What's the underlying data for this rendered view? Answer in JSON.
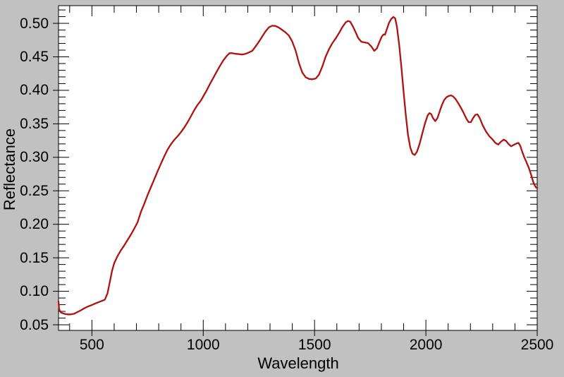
{
  "page": {
    "background": "#c1c1c1"
  },
  "axes": {
    "x": {
      "label": "Wavelength",
      "tick_labels": [
        "500",
        "1000",
        "1500",
        "2000",
        "2500"
      ]
    },
    "y": {
      "label": "Reflectance",
      "tick_labels": [
        "0.05",
        "0.10",
        "0.15",
        "0.20",
        "0.25",
        "0.30",
        "0.35",
        "0.40",
        "0.45",
        "0.50"
      ]
    }
  },
  "chart_data": {
    "type": "line",
    "title": "",
    "xlabel": "Wavelength",
    "ylabel": "Reflectance",
    "xlim": [
      350,
      2500
    ],
    "ylim": [
      0.0416,
      0.5264
    ],
    "x_major_ticks": [
      500,
      1000,
      1500,
      2000,
      2500
    ],
    "x_minor_step": 100,
    "y_major_ticks": [
      0.05,
      0.1,
      0.15,
      0.2,
      0.25,
      0.3,
      0.35,
      0.4,
      0.45,
      0.5
    ],
    "y_minor_step": 0.01,
    "grid": false,
    "legend": false,
    "line_color": "#b01212",
    "plot_bg": "#ffffff",
    "page_bg": "#c1c1c1",
    "axis_color": "#000000",
    "series": [
      {
        "name": "reflectance-spectrum",
        "points": [
          [
            350,
            0.085
          ],
          [
            353,
            0.073
          ],
          [
            360,
            0.0685
          ],
          [
            375,
            0.0665
          ],
          [
            390,
            0.0655
          ],
          [
            405,
            0.0655
          ],
          [
            420,
            0.0665
          ],
          [
            435,
            0.069
          ],
          [
            450,
            0.0715
          ],
          [
            465,
            0.0745
          ],
          [
            480,
            0.077
          ],
          [
            500,
            0.0795
          ],
          [
            520,
            0.0825
          ],
          [
            540,
            0.085
          ],
          [
            558,
            0.0875
          ],
          [
            570,
            0.097
          ],
          [
            580,
            0.113
          ],
          [
            590,
            0.13
          ],
          [
            600,
            0.142
          ],
          [
            615,
            0.1525
          ],
          [
            630,
            0.161
          ],
          [
            645,
            0.1685
          ],
          [
            660,
            0.1765
          ],
          [
            675,
            0.1845
          ],
          [
            690,
            0.1935
          ],
          [
            705,
            0.203
          ],
          [
            720,
            0.2185
          ],
          [
            735,
            0.2305
          ],
          [
            750,
            0.2435
          ],
          [
            765,
            0.2555
          ],
          [
            780,
            0.267
          ],
          [
            795,
            0.279
          ],
          [
            810,
            0.2905
          ],
          [
            825,
            0.3015
          ],
          [
            840,
            0.3115
          ],
          [
            855,
            0.3195
          ],
          [
            870,
            0.326
          ],
          [
            885,
            0.3315
          ],
          [
            900,
            0.3375
          ],
          [
            915,
            0.3445
          ],
          [
            930,
            0.3525
          ],
          [
            945,
            0.3615
          ],
          [
            960,
            0.3705
          ],
          [
            975,
            0.3785
          ],
          [
            990,
            0.385
          ],
          [
            1000,
            0.391
          ],
          [
            1015,
            0.3995
          ],
          [
            1030,
            0.4095
          ],
          [
            1045,
            0.4185
          ],
          [
            1060,
            0.4275
          ],
          [
            1075,
            0.4365
          ],
          [
            1090,
            0.4445
          ],
          [
            1105,
            0.451
          ],
          [
            1118,
            0.4555
          ],
          [
            1130,
            0.4555
          ],
          [
            1145,
            0.4545
          ],
          [
            1160,
            0.454
          ],
          [
            1175,
            0.4535
          ],
          [
            1190,
            0.4545
          ],
          [
            1205,
            0.4565
          ],
          [
            1220,
            0.459
          ],
          [
            1235,
            0.4655
          ],
          [
            1250,
            0.4725
          ],
          [
            1265,
            0.4805
          ],
          [
            1280,
            0.488
          ],
          [
            1295,
            0.494
          ],
          [
            1310,
            0.4965
          ],
          [
            1325,
            0.496
          ],
          [
            1340,
            0.4935
          ],
          [
            1355,
            0.49
          ],
          [
            1370,
            0.4865
          ],
          [
            1385,
            0.4815
          ],
          [
            1400,
            0.4725
          ],
          [
            1415,
            0.4595
          ],
          [
            1430,
            0.4405
          ],
          [
            1445,
            0.4265
          ],
          [
            1460,
            0.4195
          ],
          [
            1475,
            0.417
          ],
          [
            1490,
            0.4165
          ],
          [
            1505,
            0.4175
          ],
          [
            1520,
            0.4235
          ],
          [
            1535,
            0.4355
          ],
          [
            1550,
            0.4505
          ],
          [
            1565,
            0.4615
          ],
          [
            1580,
            0.4705
          ],
          [
            1595,
            0.4775
          ],
          [
            1610,
            0.4855
          ],
          [
            1625,
            0.4945
          ],
          [
            1640,
            0.5015
          ],
          [
            1650,
            0.5035
          ],
          [
            1660,
            0.5025
          ],
          [
            1672,
            0.4955
          ],
          [
            1684,
            0.487
          ],
          [
            1696,
            0.478
          ],
          [
            1710,
            0.4725
          ],
          [
            1725,
            0.4715
          ],
          [
            1740,
            0.4705
          ],
          [
            1755,
            0.4655
          ],
          [
            1768,
            0.459
          ],
          [
            1780,
            0.4625
          ],
          [
            1792,
            0.4725
          ],
          [
            1802,
            0.4805
          ],
          [
            1810,
            0.4835
          ],
          [
            1816,
            0.483
          ],
          [
            1824,
            0.4905
          ],
          [
            1834,
            0.5005
          ],
          [
            1844,
            0.5065
          ],
          [
            1854,
            0.5095
          ],
          [
            1862,
            0.5075
          ],
          [
            1870,
            0.495
          ],
          [
            1880,
            0.468
          ],
          [
            1890,
            0.434
          ],
          [
            1900,
            0.3975
          ],
          [
            1910,
            0.362
          ],
          [
            1920,
            0.333
          ],
          [
            1930,
            0.3145
          ],
          [
            1940,
            0.3055
          ],
          [
            1950,
            0.3035
          ],
          [
            1960,
            0.3085
          ],
          [
            1972,
            0.3205
          ],
          [
            1984,
            0.3355
          ],
          [
            1996,
            0.3505
          ],
          [
            2008,
            0.3625
          ],
          [
            2016,
            0.366
          ],
          [
            2024,
            0.3645
          ],
          [
            2032,
            0.3585
          ],
          [
            2042,
            0.354
          ],
          [
            2052,
            0.3585
          ],
          [
            2062,
            0.3685
          ],
          [
            2072,
            0.378
          ],
          [
            2082,
            0.3855
          ],
          [
            2092,
            0.3895
          ],
          [
            2102,
            0.3915
          ],
          [
            2112,
            0.3925
          ],
          [
            2122,
            0.391
          ],
          [
            2132,
            0.3875
          ],
          [
            2145,
            0.381
          ],
          [
            2158,
            0.3735
          ],
          [
            2170,
            0.366
          ],
          [
            2182,
            0.3575
          ],
          [
            2192,
            0.3525
          ],
          [
            2202,
            0.3525
          ],
          [
            2212,
            0.3585
          ],
          [
            2222,
            0.3635
          ],
          [
            2232,
            0.364
          ],
          [
            2242,
            0.3585
          ],
          [
            2255,
            0.348
          ],
          [
            2270,
            0.3385
          ],
          [
            2285,
            0.3315
          ],
          [
            2300,
            0.3265
          ],
          [
            2312,
            0.3215
          ],
          [
            2325,
            0.319
          ],
          [
            2338,
            0.3235
          ],
          [
            2350,
            0.3265
          ],
          [
            2360,
            0.3245
          ],
          [
            2372,
            0.3195
          ],
          [
            2383,
            0.3165
          ],
          [
            2394,
            0.3185
          ],
          [
            2406,
            0.3205
          ],
          [
            2416,
            0.3215
          ],
          [
            2424,
            0.317
          ],
          [
            2432,
            0.309
          ],
          [
            2442,
            0.3
          ],
          [
            2452,
            0.2925
          ],
          [
            2462,
            0.2845
          ],
          [
            2472,
            0.2745
          ],
          [
            2482,
            0.2635
          ],
          [
            2490,
            0.2575
          ],
          [
            2496,
            0.2545
          ],
          [
            2500,
            0.2545
          ]
        ]
      }
    ]
  }
}
